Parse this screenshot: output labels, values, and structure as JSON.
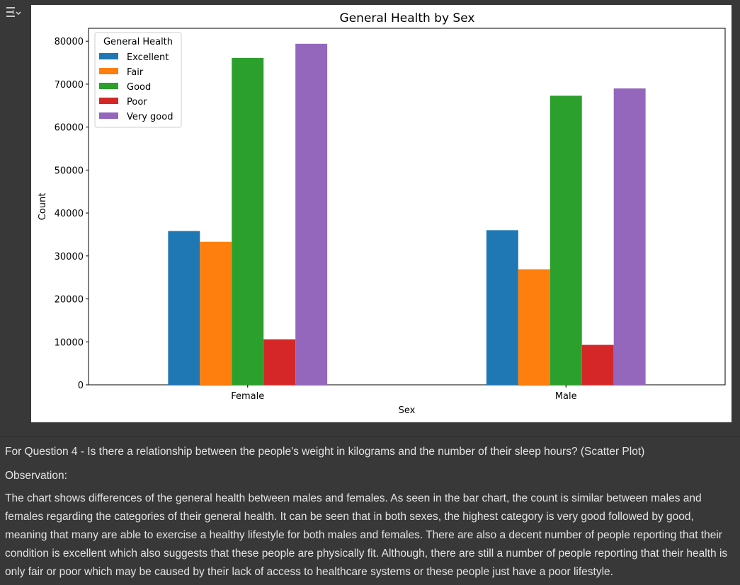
{
  "toolbar": {
    "output_icon": "output-settings-icon"
  },
  "chart_data": {
    "type": "bar",
    "title": "General Health by Sex",
    "xlabel": "Sex",
    "ylabel": "Count",
    "ylim": [
      0,
      83000
    ],
    "yticks": [
      0,
      10000,
      20000,
      30000,
      40000,
      50000,
      60000,
      70000,
      80000
    ],
    "categories": [
      "Female",
      "Male"
    ],
    "legend_title": "General Health",
    "legend_position": "upper-left",
    "grid": false,
    "series": [
      {
        "name": "Excellent",
        "color": "#1f77b4",
        "values": [
          35800,
          36000
        ]
      },
      {
        "name": "Fair",
        "color": "#ff7f0e",
        "values": [
          33300,
          26900
        ]
      },
      {
        "name": "Good",
        "color": "#2ca02c",
        "values": [
          76100,
          67300
        ]
      },
      {
        "name": "Poor",
        "color": "#d62728",
        "values": [
          10600,
          9300
        ]
      },
      {
        "name": "Very good",
        "color": "#9467bd",
        "values": [
          79400,
          69000
        ]
      }
    ]
  },
  "notes": {
    "question": "For Question 4 - Is there a relationship between the people's weight in kilograms and the number of their sleep hours? (Scatter Plot)",
    "observation_label": "Observation:",
    "observation_text": "The chart shows differences of the general health between males and females. As seen in the bar chart, the count is similar between males and females regarding the categories of their general health. It can be seen that in both sexes, the highest category is very good followed by good, meaning that many are able to exercise a healthy lifestyle for both males and females. There are also a decent number of people reporting that their condition is excellent which also suggests that these people are physically fit. Although, there are still a number of people reporting that their health is only fair or poor which may be caused by their lack of access to healthcare systems or these people just have a poor lifestyle."
  }
}
